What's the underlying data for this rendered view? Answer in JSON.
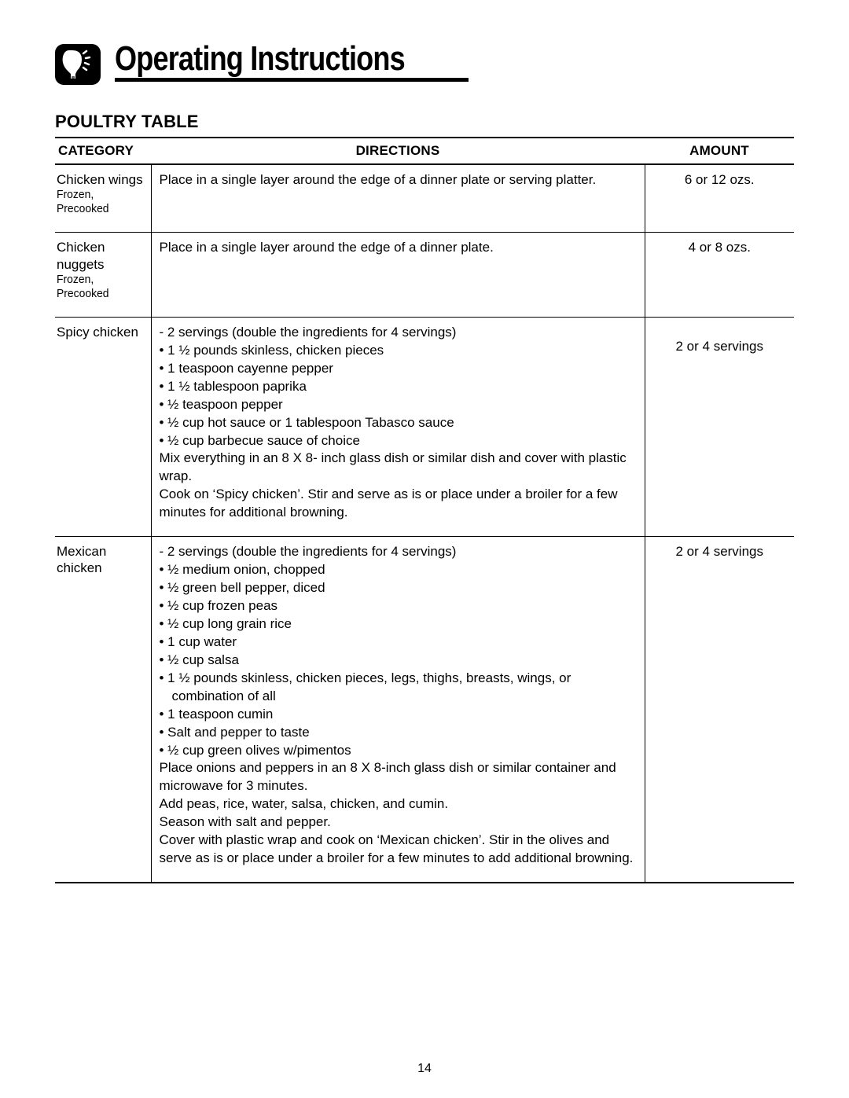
{
  "header": {
    "title": "Operating Instructions"
  },
  "section": {
    "title": "POULTRY TABLE"
  },
  "table": {
    "headers": {
      "category": "CATEGORY",
      "directions": "DIRECTIONS",
      "amount": "AMOUNT"
    },
    "rows": [
      {
        "category_name": "Chicken wings",
        "category_sub": "Frozen, Precooked",
        "amount": "6 or 12 ozs.",
        "amount_offset": 0,
        "directions": [
          {
            "t": "p",
            "text": "Place in a single layer around the edge of a dinner plate or serving platter."
          }
        ]
      },
      {
        "category_name": "Chicken nuggets",
        "category_sub": "Frozen, Precooked",
        "amount": "4 or 8 ozs.",
        "amount_offset": 0,
        "directions": [
          {
            "t": "p",
            "text": "Place in a single layer around the edge of a dinner plate."
          }
        ]
      },
      {
        "category_name": "Spicy chicken",
        "category_sub": "",
        "amount": "2 or 4 servings",
        "amount_offset": 1,
        "directions": [
          {
            "t": "p",
            "text": "- 2 servings (double the ingredients for 4 servings)"
          },
          {
            "t": "b",
            "text": "• 1 ½ pounds skinless, chicken pieces"
          },
          {
            "t": "b",
            "text": "• 1 teaspoon cayenne pepper"
          },
          {
            "t": "b",
            "text": "• 1 ½ tablespoon paprika"
          },
          {
            "t": "b",
            "text": "• ½ teaspoon pepper"
          },
          {
            "t": "b",
            "text": "• ½ cup hot sauce or 1 tablespoon Tabasco sauce"
          },
          {
            "t": "b",
            "text": "• ½ cup barbecue sauce of choice"
          },
          {
            "t": "p",
            "text": "Mix everything in an 8 X 8- inch glass dish or similar dish and cover with plastic wrap."
          },
          {
            "t": "p",
            "text": "Cook on ‘Spicy chicken’. Stir and serve as is or place under a broiler for a few minutes for additional browning."
          }
        ]
      },
      {
        "category_name": "Mexican chicken",
        "category_sub": "",
        "amount": "2 or 4 servings",
        "amount_offset": 0,
        "directions": [
          {
            "t": "p",
            "text": "- 2 servings (double the ingredients for 4 servings)"
          },
          {
            "t": "b",
            "text": "• ½ medium onion, chopped"
          },
          {
            "t": "b",
            "text": "• ½ green bell pepper, diced"
          },
          {
            "t": "b",
            "text": "• ½ cup frozen peas"
          },
          {
            "t": "b",
            "text": "• ½ cup long grain rice"
          },
          {
            "t": "b",
            "text": "• 1 cup water"
          },
          {
            "t": "b",
            "text": "• ½ cup salsa"
          },
          {
            "t": "b",
            "text": "• 1 ½ pounds skinless, chicken pieces, legs, thighs, breasts, wings, or"
          },
          {
            "t": "bi",
            "text": "combination of all"
          },
          {
            "t": "b",
            "text": "• 1 teaspoon cumin"
          },
          {
            "t": "b",
            "text": "• Salt and pepper to taste"
          },
          {
            "t": "b",
            "text": "• ½ cup green olives w/pimentos"
          },
          {
            "t": "p",
            "text": "Place onions and peppers in an 8 X 8-inch glass dish or similar container and microwave for 3 minutes."
          },
          {
            "t": "p",
            "text": "Add peas, rice, water, salsa, chicken, and cumin."
          },
          {
            "t": "p",
            "text": "Season with salt and pepper."
          },
          {
            "t": "p",
            "text": "Cover with plastic wrap and cook on ‘Mexican chicken’. Stir in the olives and serve as is or place under a broiler for a few minutes to add additional browning."
          }
        ]
      }
    ]
  },
  "page_number": "14",
  "colors": {
    "text": "#000000",
    "background": "#ffffff",
    "rule": "#000000"
  }
}
